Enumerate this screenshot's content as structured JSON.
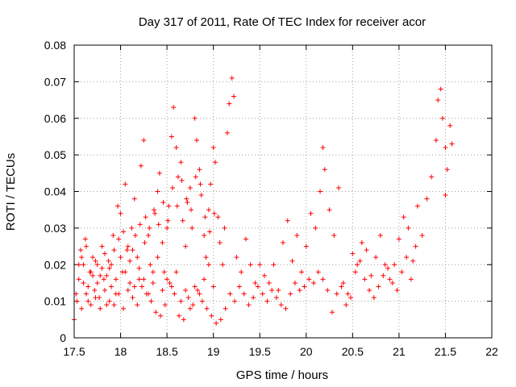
{
  "chart_data": {
    "type": "scatter",
    "title": "Day 317 of 2011, Rate Of TEC Index for receiver acor",
    "xlabel": "GPS time / hours",
    "ylabel": "ROTI / TECUs",
    "xlim": [
      17.5,
      22
    ],
    "ylim": [
      0,
      0.08
    ],
    "x_ticks": [
      "17.5",
      "18",
      "18.5",
      "19",
      "19.5",
      "20",
      "20.5",
      "21",
      "21.5",
      "22"
    ],
    "y_ticks": [
      "0",
      "0.01",
      "0.02",
      "0.03",
      "0.04",
      "0.05",
      "0.06",
      "0.07",
      "0.08"
    ],
    "grid": true,
    "marker": "+",
    "color": "#ff0000",
    "series": [
      {
        "points": [
          [
            17.5,
            0.005
          ],
          [
            17.52,
            0.012
          ],
          [
            17.55,
            0.02
          ],
          [
            17.57,
            0.024
          ],
          [
            17.6,
            0.015
          ],
          [
            17.62,
            0.027
          ],
          [
            17.65,
            0.01
          ],
          [
            17.67,
            0.018
          ],
          [
            17.7,
            0.022
          ],
          [
            17.72,
            0.013
          ],
          [
            17.75,
            0.02
          ],
          [
            17.77,
            0.011
          ],
          [
            17.8,
            0.025
          ],
          [
            17.82,
            0.016
          ],
          [
            17.85,
            0.009
          ],
          [
            17.87,
            0.021
          ],
          [
            17.9,
            0.014
          ],
          [
            17.92,
            0.028
          ],
          [
            17.95,
            0.012
          ],
          [
            17.97,
            0.036
          ],
          [
            18.0,
            0.034
          ],
          [
            18.02,
            0.018
          ],
          [
            18.05,
            0.042
          ],
          [
            18.07,
            0.024
          ],
          [
            18.1,
            0.015
          ],
          [
            18.12,
            0.03
          ],
          [
            18.15,
            0.038
          ],
          [
            18.18,
            0.022
          ],
          [
            18.2,
            0.016
          ],
          [
            18.22,
            0.047
          ],
          [
            18.25,
            0.054
          ],
          [
            18.27,
            0.033
          ],
          [
            18.3,
            0.028
          ],
          [
            18.32,
            0.02
          ],
          [
            18.35,
            0.015
          ],
          [
            18.37,
            0.034
          ],
          [
            18.4,
            0.04
          ],
          [
            18.42,
            0.045
          ],
          [
            18.45,
            0.026
          ],
          [
            18.47,
            0.018
          ],
          [
            18.5,
            0.03
          ],
          [
            18.52,
            0.036
          ],
          [
            18.55,
            0.055
          ],
          [
            18.57,
            0.063
          ],
          [
            18.6,
            0.052
          ],
          [
            18.62,
            0.044
          ],
          [
            18.65,
            0.048
          ],
          [
            18.67,
            0.032
          ],
          [
            18.7,
            0.025
          ],
          [
            18.72,
            0.037
          ],
          [
            18.75,
            0.041
          ],
          [
            18.77,
            0.03
          ],
          [
            18.8,
            0.06
          ],
          [
            18.82,
            0.054
          ],
          [
            18.85,
            0.046
          ],
          [
            18.87,
            0.039
          ],
          [
            18.9,
            0.028
          ],
          [
            18.92,
            0.022
          ],
          [
            18.95,
            0.035
          ],
          [
            18.97,
            0.042
          ],
          [
            19.0,
            0.052
          ],
          [
            19.02,
            0.048
          ],
          [
            19.05,
            0.033
          ],
          [
            19.07,
            0.026
          ],
          [
            19.1,
            0.02
          ],
          [
            19.12,
            0.03
          ],
          [
            19.15,
            0.056
          ],
          [
            19.17,
            0.064
          ],
          [
            19.2,
            0.071
          ],
          [
            19.22,
            0.066
          ],
          [
            19.25,
            0.022
          ],
          [
            19.3,
            0.018
          ],
          [
            19.35,
            0.027
          ],
          [
            19.4,
            0.02
          ],
          [
            19.45,
            0.015
          ],
          [
            19.5,
            0.02
          ],
          [
            19.55,
            0.017
          ],
          [
            19.6,
            0.015
          ],
          [
            19.65,
            0.02
          ],
          [
            19.7,
            0.013
          ],
          [
            19.75,
            0.026
          ],
          [
            19.8,
            0.032
          ],
          [
            19.85,
            0.021
          ],
          [
            19.9,
            0.028
          ],
          [
            19.95,
            0.018
          ],
          [
            20.0,
            0.025
          ],
          [
            20.05,
            0.034
          ],
          [
            20.1,
            0.03
          ],
          [
            20.15,
            0.04
          ],
          [
            20.18,
            0.052
          ],
          [
            20.2,
            0.046
          ],
          [
            20.25,
            0.035
          ],
          [
            20.3,
            0.028
          ],
          [
            20.35,
            0.041
          ],
          [
            20.4,
            0.015
          ],
          [
            20.45,
            0.012
          ],
          [
            20.5,
            0.023
          ],
          [
            20.55,
            0.02
          ],
          [
            20.6,
            0.026
          ],
          [
            20.65,
            0.024
          ],
          [
            20.7,
            0.017
          ],
          [
            20.75,
            0.022
          ],
          [
            20.8,
            0.028
          ],
          [
            20.85,
            0.02
          ],
          [
            20.9,
            0.016
          ],
          [
            20.95,
            0.02
          ],
          [
            21.0,
            0.027
          ],
          [
            21.05,
            0.033
          ],
          [
            21.1,
            0.03
          ],
          [
            21.15,
            0.021
          ],
          [
            21.2,
            0.036
          ],
          [
            21.25,
            0.028
          ],
          [
            21.3,
            0.038
          ],
          [
            21.35,
            0.044
          ],
          [
            21.4,
            0.054
          ],
          [
            21.42,
            0.065
          ],
          [
            21.45,
            0.068
          ],
          [
            21.47,
            0.06
          ],
          [
            21.5,
            0.052
          ],
          [
            21.52,
            0.046
          ],
          [
            21.55,
            0.058
          ],
          [
            21.57,
            0.053
          ],
          [
            21.5,
            0.039
          ],
          [
            17.53,
            0.01
          ],
          [
            17.58,
            0.008
          ],
          [
            17.63,
            0.012
          ],
          [
            17.68,
            0.009
          ],
          [
            17.73,
            0.011
          ],
          [
            17.78,
            0.008
          ],
          [
            17.83,
            0.013
          ],
          [
            17.88,
            0.01
          ],
          [
            17.93,
            0.009
          ],
          [
            17.98,
            0.012
          ],
          [
            18.03,
            0.008
          ],
          [
            18.08,
            0.013
          ],
          [
            18.13,
            0.011
          ],
          [
            18.18,
            0.009
          ],
          [
            18.23,
            0.014
          ],
          [
            18.28,
            0.012
          ],
          [
            18.33,
            0.01
          ],
          [
            18.38,
            0.007
          ],
          [
            18.43,
            0.006
          ],
          [
            18.48,
            0.009
          ],
          [
            18.53,
            0.015
          ],
          [
            18.58,
            0.012
          ],
          [
            18.63,
            0.006
          ],
          [
            18.68,
            0.005
          ],
          [
            18.73,
            0.011
          ],
          [
            18.78,
            0.009
          ],
          [
            18.83,
            0.013
          ],
          [
            18.88,
            0.01
          ],
          [
            18.93,
            0.008
          ],
          [
            18.98,
            0.006
          ],
          [
            19.03,
            0.004
          ],
          [
            19.08,
            0.005
          ],
          [
            19.13,
            0.008
          ],
          [
            19.18,
            0.012
          ],
          [
            19.23,
            0.01
          ],
          [
            19.28,
            0.014
          ],
          [
            19.33,
            0.012
          ],
          [
            19.38,
            0.009
          ],
          [
            19.43,
            0.011
          ],
          [
            19.48,
            0.014
          ],
          [
            19.53,
            0.012
          ],
          [
            19.58,
            0.01
          ],
          [
            19.63,
            0.013
          ],
          [
            19.68,
            0.011
          ],
          [
            19.73,
            0.009
          ],
          [
            19.78,
            0.008
          ],
          [
            19.83,
            0.012
          ],
          [
            19.88,
            0.015
          ],
          [
            19.93,
            0.013
          ],
          [
            19.98,
            0.014
          ],
          [
            20.03,
            0.016
          ],
          [
            20.08,
            0.015
          ],
          [
            20.13,
            0.018
          ],
          [
            20.18,
            0.016
          ],
          [
            20.23,
            0.013
          ],
          [
            20.28,
            0.007
          ],
          [
            20.33,
            0.012
          ],
          [
            20.38,
            0.014
          ],
          [
            20.43,
            0.009
          ],
          [
            20.48,
            0.011
          ],
          [
            20.53,
            0.018
          ],
          [
            20.58,
            0.021
          ],
          [
            20.63,
            0.016
          ],
          [
            20.68,
            0.013
          ],
          [
            20.73,
            0.011
          ],
          [
            20.78,
            0.014
          ],
          [
            20.83,
            0.017
          ],
          [
            20.88,
            0.019
          ],
          [
            20.93,
            0.015
          ],
          [
            20.98,
            0.013
          ],
          [
            21.03,
            0.018
          ],
          [
            21.08,
            0.022
          ],
          [
            21.13,
            0.016
          ],
          [
            21.18,
            0.025
          ],
          [
            17.55,
            0.016
          ],
          [
            17.6,
            0.02
          ],
          [
            17.65,
            0.014
          ],
          [
            17.7,
            0.017
          ],
          [
            17.75,
            0.015
          ],
          [
            17.8,
            0.019
          ],
          [
            17.85,
            0.017
          ],
          [
            17.9,
            0.02
          ],
          [
            17.95,
            0.016
          ],
          [
            18.0,
            0.022
          ],
          [
            18.05,
            0.018
          ],
          [
            18.1,
            0.021
          ],
          [
            18.15,
            0.014
          ],
          [
            18.2,
            0.019
          ],
          [
            18.25,
            0.016
          ],
          [
            18.3,
            0.012
          ],
          [
            18.35,
            0.018
          ],
          [
            18.4,
            0.022
          ],
          [
            18.45,
            0.013
          ],
          [
            18.5,
            0.016
          ],
          [
            18.55,
            0.014
          ],
          [
            18.6,
            0.018
          ],
          [
            18.65,
            0.01
          ],
          [
            18.7,
            0.013
          ],
          [
            18.75,
            0.008
          ],
          [
            18.8,
            0.014
          ],
          [
            18.85,
            0.012
          ],
          [
            18.9,
            0.016
          ],
          [
            18.95,
            0.02
          ],
          [
            19.0,
            0.014
          ],
          [
            17.58,
            0.022
          ],
          [
            17.63,
            0.025
          ],
          [
            17.68,
            0.018
          ],
          [
            17.73,
            0.021
          ],
          [
            17.78,
            0.017
          ],
          [
            17.83,
            0.023
          ],
          [
            17.88,
            0.019
          ],
          [
            17.93,
            0.024
          ],
          [
            17.98,
            0.027
          ],
          [
            18.03,
            0.029
          ],
          [
            18.08,
            0.025
          ],
          [
            18.13,
            0.024
          ],
          [
            18.16,
            0.028
          ],
          [
            18.21,
            0.031
          ],
          [
            18.26,
            0.026
          ],
          [
            18.31,
            0.03
          ],
          [
            18.36,
            0.035
          ],
          [
            18.41,
            0.031
          ],
          [
            18.46,
            0.037
          ],
          [
            18.51,
            0.032
          ],
          [
            18.56,
            0.041
          ],
          [
            18.61,
            0.036
          ],
          [
            18.66,
            0.043
          ],
          [
            18.71,
            0.038
          ],
          [
            18.76,
            0.035
          ],
          [
            18.81,
            0.044
          ],
          [
            18.86,
            0.042
          ],
          [
            18.91,
            0.033
          ],
          [
            18.96,
            0.029
          ],
          [
            19.01,
            0.034
          ]
        ]
      }
    ]
  }
}
